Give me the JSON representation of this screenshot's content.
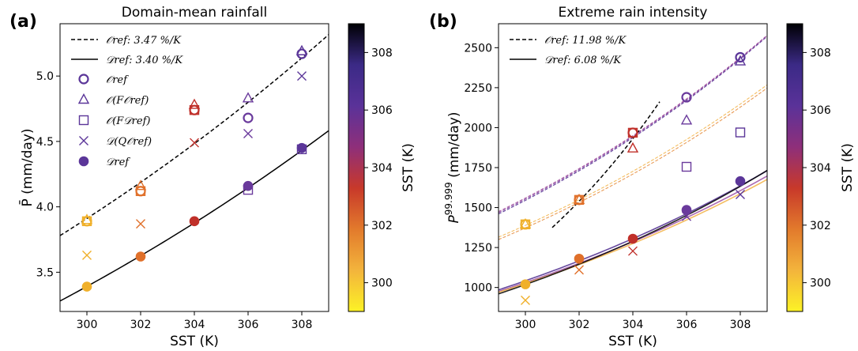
{
  "chart_data": [
    {
      "panel": "(a)",
      "type": "scatter",
      "title": "Domain-mean rainfall",
      "xlabel": "SST (K)",
      "ylabel": "P̄ (mm/day)",
      "xlim": [
        299,
        309
      ],
      "ylim": [
        3.2,
        5.4
      ],
      "xticks": [
        300,
        302,
        304,
        306,
        308
      ],
      "yticks": [
        3.5,
        4.0,
        4.5,
        5.0
      ],
      "x": [
        300,
        302,
        304,
        306,
        308
      ],
      "legend_position": "upper-left",
      "fits": [
        {
          "name": "O_ref: 3.47 %/K",
          "label": "𝒪ref: 3.47 %/K",
          "style": "dashed",
          "x0": 299,
          "x1": 309,
          "a": 3.78,
          "rate": 0.0347
        },
        {
          "name": "D_ref: 3.40 %/K",
          "label": "𝒟ref: 3.40 %/K",
          "style": "solid",
          "x0": 299,
          "x1": 309,
          "a": 3.28,
          "rate": 0.034
        }
      ],
      "series": [
        {
          "name": "O_ref",
          "label": "𝒪ref",
          "marker": "circle-open",
          "values": [
            3.89,
            4.12,
            4.74,
            4.68,
            5.17
          ]
        },
        {
          "name": "O(F_Oref)",
          "label": "𝒪(F𝒪ref)",
          "marker": "triangle-open",
          "values": [
            3.9,
            4.16,
            4.78,
            4.83,
            5.19
          ]
        },
        {
          "name": "O(F_Dref)",
          "label": "𝒪(F𝒟ref)",
          "marker": "square-open",
          "values": [
            3.89,
            4.12,
            4.74,
            4.13,
            4.44
          ]
        },
        {
          "name": "D(Q_Oref)",
          "label": "𝒟(Q𝒪ref)",
          "marker": "x",
          "values": [
            3.63,
            3.87,
            4.49,
            4.56,
            5.0
          ]
        },
        {
          "name": "D_ref",
          "label": "𝒟ref",
          "marker": "circle-filled",
          "values": [
            3.39,
            3.62,
            3.89,
            4.16,
            4.45
          ]
        }
      ]
    },
    {
      "panel": "(b)",
      "type": "scatter",
      "title": "Extreme rain intensity",
      "xlabel": "SST (K)",
      "ylabel": "P^99.999 (mm/day)",
      "xlim": [
        299,
        309
      ],
      "ylim": [
        850,
        2650
      ],
      "xticks": [
        300,
        302,
        304,
        306,
        308
      ],
      "yticks": [
        1000,
        1250,
        1500,
        1750,
        2000,
        2250,
        2500
      ],
      "x": [
        300,
        302,
        304,
        306,
        308
      ],
      "legend_position": "upper-left",
      "fits": [
        {
          "name": "O_ref: 11.98 %/K",
          "label": "𝒪ref: 11.98 %/K",
          "style": "dashed",
          "x0": 301,
          "x1": 305,
          "a": 1375,
          "rate": 0.1198
        }
      ],
      "fit_legend": [
        {
          "label": "𝒪ref: 11.98 %/K",
          "style": "dashed"
        },
        {
          "label": "𝒟ref: 6.08 %/K",
          "style": "solid"
        }
      ],
      "colored_fits": [
        {
          "a": 1460,
          "rate": 0.0582,
          "base": 299,
          "color": "#4e2a8e",
          "style": "dashed"
        },
        {
          "a": 1468,
          "rate": 0.0578,
          "base": 299,
          "color": "#7c3a9b",
          "style": "dashed"
        },
        {
          "a": 1475,
          "rate": 0.0574,
          "base": 299,
          "color": "#a04a9a",
          "style": "dashed"
        },
        {
          "a": 1300,
          "rate": 0.0563,
          "base": 299,
          "color": "#e58a3a",
          "style": "dashed"
        },
        {
          "a": 1315,
          "rate": 0.056,
          "base": 299,
          "color": "#f2b347",
          "style": "dashed"
        },
        {
          "a": 985,
          "rate": 0.058,
          "base": 299,
          "color": "#4e2a8e",
          "style": "solid"
        },
        {
          "a": 975,
          "rate": 0.057,
          "base": 299,
          "color": "#9b4ea5",
          "style": "solid"
        },
        {
          "a": 970,
          "rate": 0.0562,
          "base": 299,
          "color": "#f2b347",
          "style": "solid"
        },
        {
          "a": 960,
          "rate": 0.0608,
          "base": 299,
          "color": "#000000",
          "style": "solid"
        }
      ],
      "series": [
        {
          "name": "O_ref",
          "marker": "circle-open",
          "values": [
            1395,
            1548,
            1968,
            2190,
            2440
          ]
        },
        {
          "name": "O(F_Oref)",
          "marker": "triangle-open",
          "values": [
            1395,
            1548,
            1870,
            2045,
            2415
          ]
        },
        {
          "name": "O(F_Dref)",
          "marker": "square-open",
          "values": [
            1395,
            1548,
            1968,
            1755,
            1970
          ]
        },
        {
          "name": "D(Q_Oref)",
          "marker": "x",
          "values": [
            920,
            1110,
            1228,
            1445,
            1582
          ]
        },
        {
          "name": "D_ref",
          "marker": "circle-filled",
          "values": [
            1020,
            1180,
            1305,
            1485,
            1665
          ]
        }
      ]
    }
  ],
  "colorbar": {
    "label": "SST (K)",
    "min": 299,
    "max": 309,
    "ticks": [
      300,
      302,
      304,
      306,
      308
    ],
    "stops": [
      "#fcf226",
      "#f3b43c",
      "#e27a2c",
      "#c8392a",
      "#8e2f7a",
      "#5a3299",
      "#3b2a86",
      "#000004"
    ]
  },
  "point_colors": {
    "300": "#f0b02a",
    "302": "#e0702a",
    "304": "#c0302a",
    "306": "#6a3a9c",
    "308": "#5b3699"
  }
}
